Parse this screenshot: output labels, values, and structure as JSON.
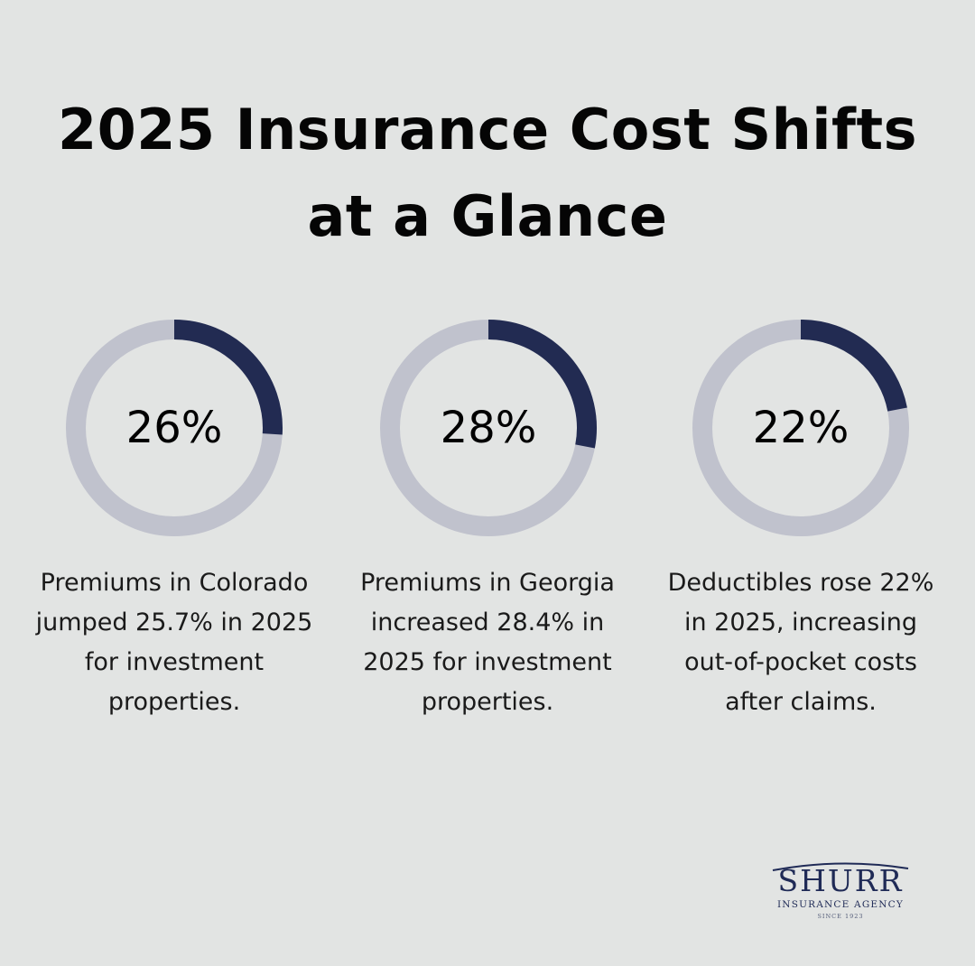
{
  "title": {
    "line1": "2025 Insurance Cost Shifts",
    "line2": "at a Glance"
  },
  "colors": {
    "background": "#e2e4e3",
    "ring_track": "#c0c2cd",
    "ring_fill": "#222b52",
    "brand": "#1f2a56"
  },
  "chart_data": [
    {
      "type": "pie",
      "style": "donut",
      "value": 26,
      "unit": "%",
      "label": "26%",
      "description": "Premiums in Colorado jumped 25.7% in 2025 for investment properties."
    },
    {
      "type": "pie",
      "style": "donut",
      "value": 28,
      "unit": "%",
      "label": "28%",
      "description": "Premiums in Georgia increased 28.4% in 2025 for investment properties."
    },
    {
      "type": "pie",
      "style": "donut",
      "value": 22,
      "unit": "%",
      "label": "22%",
      "description": "Deductibles rose 22% in 2025, increasing out-of-pocket costs after claims."
    }
  ],
  "logo": {
    "name": "SHURR",
    "subtitle": "INSURANCE AGENCY",
    "since": "SINCE 1923"
  }
}
